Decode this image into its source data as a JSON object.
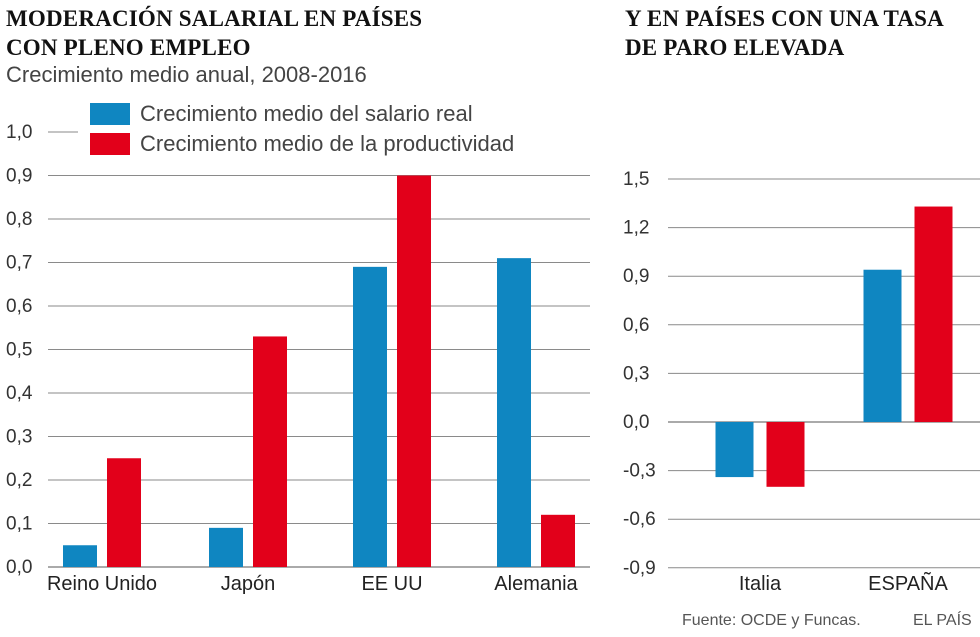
{
  "left": {
    "title_line1": "MODERACIÓN SALARIAL EN PAÍSES",
    "title_line2": "CON PLENO EMPLEO",
    "subtitle": "Crecimiento medio anual, 2008-2016"
  },
  "right": {
    "title_line1": "Y EN PAÍSES CON UNA TASA",
    "title_line2": "DE PARO ELEVADA"
  },
  "legend": {
    "salary": "Crecimiento medio del salario real",
    "productivity": "Crecimiento medio de la productividad"
  },
  "colors": {
    "salary": "#0f86c1",
    "productivity": "#e2001a",
    "grid": "#8a8a8a"
  },
  "footer": {
    "source": "Fuente: OCDE y Funcas.",
    "brand": "EL PAÍS"
  },
  "chart_data": [
    {
      "type": "bar",
      "title": "MODERACIÓN SALARIAL EN PAÍSES CON PLENO EMPLEO",
      "subtitle": "Crecimiento medio anual, 2008-2016",
      "categories": [
        "Reino Unido",
        "Japón",
        "EE UU",
        "Alemania"
      ],
      "series": [
        {
          "name": "Crecimiento medio del salario real",
          "values": [
            0.05,
            0.09,
            0.69,
            0.71
          ]
        },
        {
          "name": "Crecimiento medio de la productividad",
          "values": [
            0.25,
            0.53,
            0.9,
            0.12
          ]
        }
      ],
      "ylim": [
        0,
        1.0
      ],
      "yticks": [
        "0,0",
        "0,1",
        "0,2",
        "0,3",
        "0,4",
        "0,5",
        "0,6",
        "0,7",
        "0,8",
        "0,9",
        "1,0"
      ],
      "grid": true,
      "legend": "top"
    },
    {
      "type": "bar",
      "title": "Y EN PAÍSES CON UNA TASA DE PARO ELEVADA",
      "categories": [
        "Italia",
        "ESPAÑA"
      ],
      "series": [
        {
          "name": "Crecimiento medio del salario real",
          "values": [
            -0.34,
            0.94
          ]
        },
        {
          "name": "Crecimiento medio de la productividad",
          "values": [
            -0.4,
            1.33
          ]
        }
      ],
      "ylim": [
        -0.9,
        1.5
      ],
      "yticks": [
        "1,5",
        "1,2",
        "0,9",
        "0,6",
        "0,3",
        "0,0",
        "-0,3",
        "-0,6",
        "-0,9"
      ],
      "grid": true
    }
  ]
}
